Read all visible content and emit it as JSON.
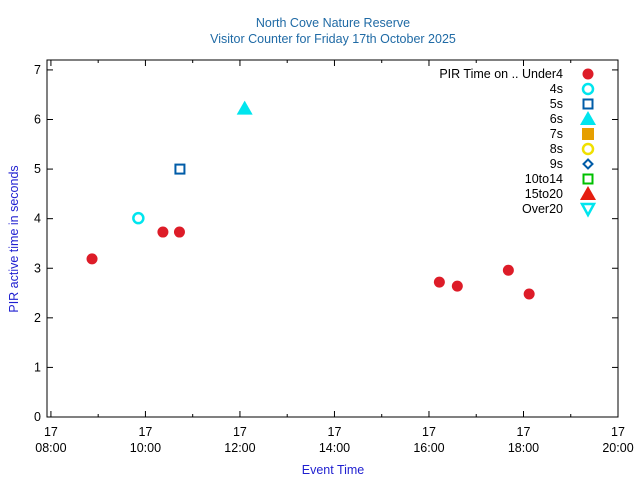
{
  "chart_data": {
    "type": "scatter",
    "title": "North Cove Nature Reserve",
    "subtitle": "Visitor Counter for Friday 17th October 2025",
    "xlabel": "Event Time",
    "ylabel": "PIR active time in seconds",
    "xlim_hours": [
      7.917,
      20.0
    ],
    "ylim": [
      0,
      7.2
    ],
    "y_ticks": [
      0,
      1,
      2,
      3,
      4,
      5,
      6,
      7
    ],
    "x_ticks": [
      {
        "hour": 8,
        "day": "17",
        "time": "08:00"
      },
      {
        "hour": 10,
        "day": "17",
        "time": "10:00"
      },
      {
        "hour": 12,
        "day": "17",
        "time": "12:00"
      },
      {
        "hour": 14,
        "day": "17",
        "time": "14:00"
      },
      {
        "hour": 16,
        "day": "17",
        "time": "16:00"
      },
      {
        "hour": 18,
        "day": "17",
        "time": "18:00"
      },
      {
        "hour": 20,
        "day": "17",
        "time": "20:00"
      }
    ],
    "legend_title": "PIR Time on ..",
    "legend_position": "top-right",
    "series": [
      {
        "name": "Under4",
        "marker": "circle-filled",
        "color": "#dd1c28",
        "points": [
          {
            "x": 8.87,
            "y": 3.19
          },
          {
            "x": 10.37,
            "y": 3.73
          },
          {
            "x": 10.72,
            "y": 3.73
          },
          {
            "x": 16.22,
            "y": 2.72
          },
          {
            "x": 16.6,
            "y": 2.64
          },
          {
            "x": 17.68,
            "y": 2.96
          },
          {
            "x": 18.12,
            "y": 2.48
          }
        ]
      },
      {
        "name": "4s",
        "marker": "circle-open",
        "color": "#00e5ee",
        "points": [
          {
            "x": 9.85,
            "y": 4.01
          }
        ]
      },
      {
        "name": "5s",
        "marker": "square-open",
        "color": "#005ca8",
        "points": [
          {
            "x": 10.73,
            "y": 5.0
          }
        ]
      },
      {
        "name": "6s",
        "marker": "triangle-up-filled",
        "color": "#00e5ee",
        "points": [
          {
            "x": 12.1,
            "y": 6.22
          }
        ]
      },
      {
        "name": "7s",
        "marker": "square-filled",
        "color": "#e69f00",
        "points": []
      },
      {
        "name": "8s",
        "marker": "circle-open",
        "color": "#f0e000",
        "points": []
      },
      {
        "name": "9s",
        "marker": "diamond-open",
        "color": "#005ca8",
        "points": []
      },
      {
        "name": "10to14",
        "marker": "square-open",
        "color": "#00c000",
        "points": []
      },
      {
        "name": "15to20",
        "marker": "triangle-up-filled",
        "color": "#e51e10",
        "points": []
      },
      {
        "name": "Over20",
        "marker": "triangle-down-open",
        "color": "#00e5ee",
        "points": []
      }
    ]
  }
}
